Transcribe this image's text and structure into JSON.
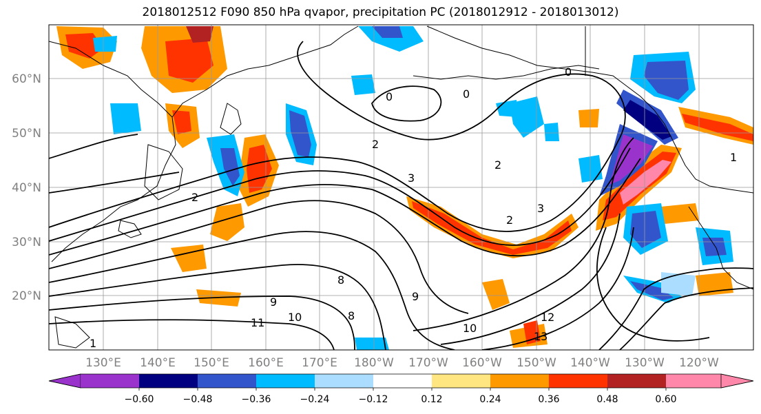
{
  "title": "2018012512 F090 850 hPa qvapor, precipitation PC (2018012912 - 2018013012)",
  "map": {
    "lat_labels": [
      "60°N",
      "50°N",
      "40°N",
      "30°N",
      "20°N"
    ],
    "lon_labels": [
      "130°E",
      "140°E",
      "150°E",
      "160°E",
      "170°E",
      "180°W",
      "170°W",
      "160°W",
      "150°W",
      "140°W",
      "130°W",
      "120°W"
    ],
    "contour_labels": [
      "0",
      "0",
      "0",
      "1",
      "2",
      "2",
      "2",
      "2",
      "3",
      "3",
      "8",
      "8",
      "9",
      "9",
      "10",
      "10",
      "11",
      "12",
      "13",
      "1"
    ],
    "colors": {
      "land_outline": "#000000",
      "grid": "#999999",
      "contour": "#000000"
    }
  },
  "colorbar": {
    "colors": [
      "#9933cc",
      "#000080",
      "#3355cc",
      "#00bbff",
      "#aaddff",
      "#ffffff",
      "#ffe680",
      "#ff9900",
      "#ff3300",
      "#b22222",
      "#ff88aa"
    ],
    "tick_labels": [
      "−0.60",
      "−0.48",
      "−0.36",
      "−0.24",
      "−0.12",
      "0.12",
      "0.24",
      "0.36",
      "0.48",
      "0.60"
    ]
  }
}
